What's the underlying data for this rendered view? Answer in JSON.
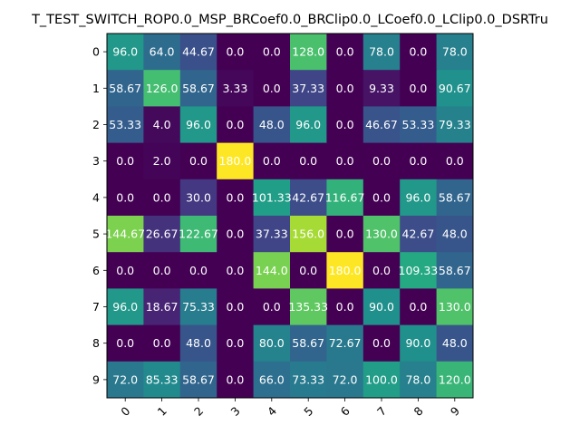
{
  "chart_data": {
    "type": "heatmap",
    "title": "T_TEST_SWITCH_ROP0.0_MSP_BRCoef0.0_BRClip0.0_LCoef0.0_LClip0.0_DSRTru",
    "x_ticks": [
      "0",
      "1",
      "2",
      "3",
      "4",
      "5",
      "6",
      "7",
      "8",
      "9"
    ],
    "y_ticks": [
      "0",
      "1",
      "2",
      "3",
      "4",
      "5",
      "6",
      "7",
      "8",
      "9"
    ],
    "colormap": "viridis",
    "vmin": 0.0,
    "vmax": 180.0,
    "values": [
      [
        96.0,
        64.0,
        44.67,
        0.0,
        0.0,
        128.0,
        0.0,
        78.0,
        0.0,
        78.0
      ],
      [
        58.67,
        126.0,
        58.67,
        3.33,
        0.0,
        37.33,
        0.0,
        9.33,
        0.0,
        90.67
      ],
      [
        53.33,
        4.0,
        96.0,
        0.0,
        48.0,
        96.0,
        0.0,
        46.67,
        53.33,
        79.33
      ],
      [
        0.0,
        2.0,
        0.0,
        180.0,
        0.0,
        0.0,
        0.0,
        0.0,
        0.0,
        0.0
      ],
      [
        0.0,
        0.0,
        30.0,
        0.0,
        101.33,
        42.67,
        116.67,
        0.0,
        96.0,
        58.67
      ],
      [
        144.67,
        26.67,
        122.67,
        0.0,
        37.33,
        156.0,
        0.0,
        130.0,
        42.67,
        48.0
      ],
      [
        0.0,
        0.0,
        0.0,
        0.0,
        144.0,
        0.0,
        180.0,
        0.0,
        109.33,
        58.67
      ],
      [
        96.0,
        18.67,
        75.33,
        0.0,
        0.0,
        135.33,
        0.0,
        90.0,
        0.0,
        130.0
      ],
      [
        0.0,
        0.0,
        48.0,
        0.0,
        80.0,
        58.67,
        72.67,
        0.0,
        90.0,
        48.0
      ],
      [
        72.0,
        85.33,
        58.67,
        0.0,
        66.0,
        73.33,
        72.0,
        100.0,
        78.0,
        120.0
      ]
    ],
    "labels": [
      [
        "96.0",
        "64.0",
        "44.67",
        "0.0",
        "0.0",
        "128.0",
        "0.0",
        "78.0",
        "0.0",
        "78.0"
      ],
      [
        "58.67",
        "126.0",
        "58.67",
        "3.33",
        "0.0",
        "37.33",
        "0.0",
        "9.33",
        "0.0",
        "90.67"
      ],
      [
        "53.33",
        "4.0",
        "96.0",
        "0.0",
        "48.0",
        "96.0",
        "0.0",
        "46.67",
        "53.33",
        "79.33"
      ],
      [
        "0.0",
        "2.0",
        "0.0",
        "180.0",
        "0.0",
        "0.0",
        "0.0",
        "0.0",
        "0.0",
        "0.0"
      ],
      [
        "0.0",
        "0.0",
        "30.0",
        "0.0",
        "101.33",
        "42.67",
        "116.67",
        "0.0",
        "96.0",
        "58.67"
      ],
      [
        "144.67",
        "26.67",
        "122.67",
        "0.0",
        "37.33",
        "156.0",
        "0.0",
        "130.0",
        "42.67",
        "48.0"
      ],
      [
        "0.0",
        "0.0",
        "0.0",
        "0.0",
        "144.0",
        "0.0",
        "180.0",
        "0.0",
        "109.33",
        "58.67"
      ],
      [
        "96.0",
        "18.67",
        "75.33",
        "0.0",
        "0.0",
        "135.33",
        "0.0",
        "90.0",
        "0.0",
        "130.0"
      ],
      [
        "0.0",
        "0.0",
        "48.0",
        "0.0",
        "80.0",
        "58.67",
        "72.67",
        "0.0",
        "90.0",
        "48.0"
      ],
      [
        "72.0",
        "85.33",
        "58.67",
        "0.0",
        "66.0",
        "73.33",
        "72.0",
        "100.0",
        "78.0",
        "120.0"
      ]
    ]
  }
}
